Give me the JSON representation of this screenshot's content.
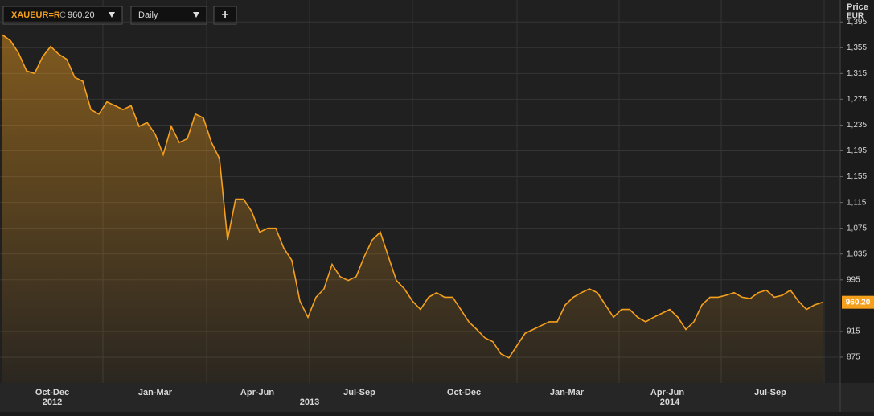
{
  "toolbar": {
    "symbol": "XAUEUR=R",
    "close_prefix": "C",
    "close": "960.20",
    "interval": "Daily",
    "add": "+"
  },
  "chart_data": {
    "type": "line",
    "y_axis_title": "Price",
    "y_axis_unit": "EUR",
    "color": "#f5a01d",
    "grid": true,
    "values": [
      1375,
      1366,
      1347,
      1319,
      1315,
      1341,
      1357,
      1345,
      1337,
      1309,
      1303,
      1259,
      1252,
      1271,
      1265,
      1259,
      1265,
      1233,
      1239,
      1221,
      1189,
      1233,
      1208,
      1214,
      1252,
      1246,
      1208,
      1183,
      1057,
      1120,
      1120,
      1101,
      1069,
      1075,
      1075,
      1044,
      1025,
      962,
      937,
      968,
      981,
      1019,
      1000,
      994,
      1000,
      1031,
      1057,
      1069,
      1031,
      994,
      981,
      962,
      949,
      968,
      975,
      968,
      968,
      949,
      930,
      918,
      905,
      899,
      880,
      874,
      893,
      912,
      918,
      924,
      930,
      930,
      956,
      968,
      975,
      981,
      975,
      956,
      937,
      949,
      949,
      937,
      930,
      937,
      943,
      949,
      937,
      918,
      930,
      956,
      968,
      968,
      971,
      975,
      968,
      966,
      975,
      979,
      968,
      971,
      979,
      962,
      949,
      956,
      960.2
    ],
    "xlim": [
      -0.3,
      104.2
    ],
    "xticks": [
      {
        "value": 6.2,
        "label": "Oct-Dec"
      },
      {
        "value": 19,
        "label": "Jan-Mar"
      },
      {
        "value": 31.7,
        "label": "Apr-Jun"
      },
      {
        "value": 44.4,
        "label": "Jul-Sep"
      },
      {
        "value": 57.4,
        "label": "Oct-Dec"
      },
      {
        "value": 70.2,
        "label": "Jan-Mar"
      },
      {
        "value": 82.7,
        "label": "Apr-Jun"
      },
      {
        "value": 95.5,
        "label": "Jul-Sep"
      }
    ],
    "year_ticks": [
      {
        "value": 6.2,
        "label": "2012"
      },
      {
        "value": 38.2,
        "label": "2013"
      },
      {
        "value": 83,
        "label": "2014"
      }
    ],
    "ylim": [
      835,
      1429
    ],
    "yticks": [
      {
        "value": 1395,
        "label": "1,395"
      },
      {
        "value": 1355,
        "label": "1,355"
      },
      {
        "value": 1315,
        "label": "1,315"
      },
      {
        "value": 1275,
        "label": "1,275"
      },
      {
        "value": 1235,
        "label": "1,235"
      },
      {
        "value": 1195,
        "label": "1,195"
      },
      {
        "value": 1155,
        "label": "1,155"
      },
      {
        "value": 1115,
        "label": "1,115"
      },
      {
        "value": 1075,
        "label": "1,075"
      },
      {
        "value": 1035,
        "label": "1,035"
      },
      995,
      915,
      875
    ]
  }
}
